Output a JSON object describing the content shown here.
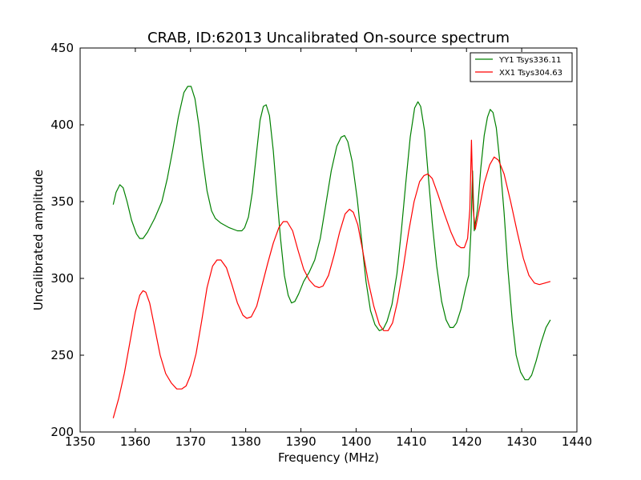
{
  "chart_data": {
    "type": "line",
    "title": "CRAB, ID:62013 Uncalibrated On-source spectrum",
    "xlabel": "Frequency (MHz)",
    "ylabel": "Uncalibrated amplitude",
    "xlim": [
      1350,
      1440
    ],
    "ylim": [
      200,
      450
    ],
    "xticks": [
      1350,
      1360,
      1370,
      1380,
      1390,
      1400,
      1410,
      1420,
      1430,
      1440
    ],
    "yticks": [
      200,
      250,
      300,
      350,
      400,
      450
    ],
    "grid": false,
    "legend_position": "top-right",
    "series": [
      {
        "name": "YY1 Tsys336.11",
        "color": "#008000",
        "points": [
          [
            1356.0,
            348
          ],
          [
            1356.5,
            356
          ],
          [
            1357.2,
            361
          ],
          [
            1357.8,
            359
          ],
          [
            1358.5,
            350
          ],
          [
            1359.3,
            338
          ],
          [
            1360.2,
            329
          ],
          [
            1360.8,
            326
          ],
          [
            1361.4,
            326
          ],
          [
            1362.2,
            330
          ],
          [
            1363.5,
            339
          ],
          [
            1364.8,
            350
          ],
          [
            1365.8,
            365
          ],
          [
            1366.8,
            384
          ],
          [
            1367.8,
            405
          ],
          [
            1368.8,
            421
          ],
          [
            1369.5,
            425
          ],
          [
            1370.1,
            425
          ],
          [
            1370.8,
            417
          ],
          [
            1371.5,
            400
          ],
          [
            1372.2,
            378
          ],
          [
            1373.0,
            357
          ],
          [
            1373.8,
            344
          ],
          [
            1374.5,
            339
          ],
          [
            1375.5,
            336
          ],
          [
            1377.0,
            333
          ],
          [
            1378.5,
            331
          ],
          [
            1379.3,
            331
          ],
          [
            1379.8,
            333
          ],
          [
            1380.5,
            340
          ],
          [
            1381.2,
            356
          ],
          [
            1381.9,
            380
          ],
          [
            1382.6,
            403
          ],
          [
            1383.2,
            412
          ],
          [
            1383.7,
            413
          ],
          [
            1384.3,
            406
          ],
          [
            1385.0,
            383
          ],
          [
            1385.6,
            356
          ],
          [
            1386.3,
            326
          ],
          [
            1387.0,
            302
          ],
          [
            1387.7,
            289
          ],
          [
            1388.3,
            284
          ],
          [
            1388.9,
            285
          ],
          [
            1389.6,
            290
          ],
          [
            1390.5,
            298
          ],
          [
            1391.5,
            304
          ],
          [
            1392.5,
            312
          ],
          [
            1393.5,
            326
          ],
          [
            1394.5,
            348
          ],
          [
            1395.5,
            370
          ],
          [
            1396.5,
            386
          ],
          [
            1397.3,
            392
          ],
          [
            1397.9,
            393
          ],
          [
            1398.5,
            389
          ],
          [
            1399.3,
            376
          ],
          [
            1400.2,
            352
          ],
          [
            1401.0,
            325
          ],
          [
            1401.8,
            298
          ],
          [
            1402.6,
            279
          ],
          [
            1403.4,
            270
          ],
          [
            1404.2,
            266
          ],
          [
            1404.9,
            267
          ],
          [
            1405.6,
            272
          ],
          [
            1406.5,
            283
          ],
          [
            1407.4,
            303
          ],
          [
            1408.2,
            331
          ],
          [
            1409.0,
            362
          ],
          [
            1409.8,
            392
          ],
          [
            1410.6,
            411
          ],
          [
            1411.2,
            415
          ],
          [
            1411.7,
            412
          ],
          [
            1412.4,
            396
          ],
          [
            1413.0,
            370
          ],
          [
            1413.8,
            336
          ],
          [
            1414.6,
            308
          ],
          [
            1415.5,
            285
          ],
          [
            1416.3,
            273
          ],
          [
            1417.0,
            268
          ],
          [
            1417.6,
            268
          ],
          [
            1418.2,
            271
          ],
          [
            1419.0,
            280
          ],
          [
            1419.8,
            293
          ],
          [
            1420.4,
            302
          ],
          [
            1420.8,
            330
          ],
          [
            1421.1,
            370
          ],
          [
            1421.4,
            331
          ],
          [
            1422.0,
            345
          ],
          [
            1422.6,
            372
          ],
          [
            1423.2,
            393
          ],
          [
            1423.8,
            405
          ],
          [
            1424.3,
            410
          ],
          [
            1424.8,
            408
          ],
          [
            1425.4,
            398
          ],
          [
            1426.1,
            374
          ],
          [
            1426.8,
            343
          ],
          [
            1427.5,
            306
          ],
          [
            1428.3,
            272
          ],
          [
            1429.0,
            250
          ],
          [
            1429.8,
            239
          ],
          [
            1430.6,
            234
          ],
          [
            1431.2,
            234
          ],
          [
            1431.8,
            237
          ],
          [
            1432.6,
            246
          ],
          [
            1433.5,
            258
          ],
          [
            1434.4,
            268
          ],
          [
            1435.2,
            273
          ]
        ]
      },
      {
        "name": "XX1 Tsys304.63",
        "color": "#ff0000",
        "points": [
          [
            1356.0,
            209
          ],
          [
            1357.0,
            222
          ],
          [
            1358.0,
            238
          ],
          [
            1359.0,
            258
          ],
          [
            1360.0,
            278
          ],
          [
            1360.8,
            289
          ],
          [
            1361.4,
            292
          ],
          [
            1361.9,
            291
          ],
          [
            1362.6,
            284
          ],
          [
            1363.5,
            268
          ],
          [
            1364.5,
            250
          ],
          [
            1365.5,
            238
          ],
          [
            1366.5,
            232
          ],
          [
            1367.5,
            228
          ],
          [
            1368.4,
            228
          ],
          [
            1369.2,
            230
          ],
          [
            1370.0,
            237
          ],
          [
            1371.0,
            251
          ],
          [
            1372.0,
            272
          ],
          [
            1373.0,
            294
          ],
          [
            1374.0,
            308
          ],
          [
            1374.8,
            312
          ],
          [
            1375.5,
            312
          ],
          [
            1376.5,
            307
          ],
          [
            1377.5,
            296
          ],
          [
            1378.5,
            284
          ],
          [
            1379.5,
            276
          ],
          [
            1380.2,
            274
          ],
          [
            1381.0,
            275
          ],
          [
            1382.0,
            282
          ],
          [
            1383.0,
            296
          ],
          [
            1384.0,
            310
          ],
          [
            1385.0,
            323
          ],
          [
            1386.0,
            333
          ],
          [
            1386.8,
            337
          ],
          [
            1387.5,
            337
          ],
          [
            1388.5,
            331
          ],
          [
            1389.5,
            318
          ],
          [
            1390.5,
            306
          ],
          [
            1391.5,
            299
          ],
          [
            1392.5,
            295
          ],
          [
            1393.3,
            294
          ],
          [
            1394.0,
            295
          ],
          [
            1395.0,
            302
          ],
          [
            1396.0,
            315
          ],
          [
            1397.0,
            330
          ],
          [
            1398.0,
            342
          ],
          [
            1398.8,
            345
          ],
          [
            1399.5,
            343
          ],
          [
            1400.3,
            335
          ],
          [
            1401.2,
            318
          ],
          [
            1402.2,
            298
          ],
          [
            1403.2,
            282
          ],
          [
            1404.2,
            270
          ],
          [
            1405.0,
            266
          ],
          [
            1405.8,
            266
          ],
          [
            1406.6,
            271
          ],
          [
            1407.5,
            285
          ],
          [
            1408.5,
            306
          ],
          [
            1409.5,
            330
          ],
          [
            1410.5,
            350
          ],
          [
            1411.5,
            363
          ],
          [
            1412.3,
            367
          ],
          [
            1413.0,
            368
          ],
          [
            1413.8,
            365
          ],
          [
            1414.8,
            355
          ],
          [
            1416.0,
            342
          ],
          [
            1417.2,
            330
          ],
          [
            1418.2,
            322
          ],
          [
            1419.0,
            320
          ],
          [
            1419.6,
            320
          ],
          [
            1420.2,
            326
          ],
          [
            1420.6,
            345
          ],
          [
            1420.9,
            390
          ],
          [
            1421.2,
            345
          ],
          [
            1421.6,
            332
          ],
          [
            1422.3,
            345
          ],
          [
            1423.2,
            362
          ],
          [
            1424.2,
            374
          ],
          [
            1425.0,
            379
          ],
          [
            1425.8,
            377
          ],
          [
            1426.8,
            368
          ],
          [
            1428.0,
            350
          ],
          [
            1429.2,
            330
          ],
          [
            1430.3,
            313
          ],
          [
            1431.3,
            302
          ],
          [
            1432.3,
            297
          ],
          [
            1433.2,
            296
          ],
          [
            1434.2,
            297
          ],
          [
            1435.2,
            298
          ]
        ]
      }
    ]
  }
}
